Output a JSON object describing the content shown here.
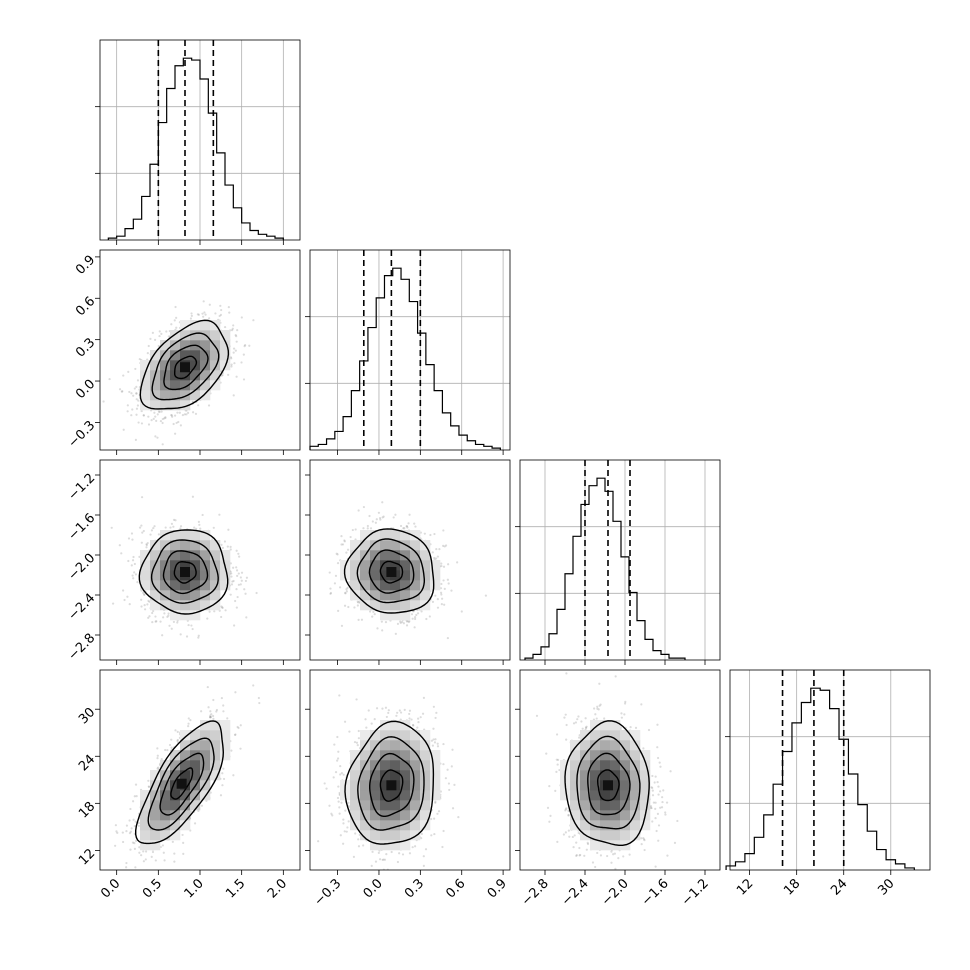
{
  "chart_data": {
    "type": "corner",
    "grid": true,
    "params": [
      {
        "range": [
          -0.2,
          2.2
        ],
        "ticks": [
          0.0,
          0.5,
          1.0,
          1.5,
          2.0
        ],
        "tick_labels": [
          "0.0",
          "0.5",
          "1.0",
          "1.5",
          "2.0"
        ],
        "quantiles": [
          0.5,
          0.82,
          1.16
        ],
        "hist_bins": [
          -0.1,
          0.0,
          0.1,
          0.2,
          0.3,
          0.4,
          0.5,
          0.6,
          0.7,
          0.8,
          0.9,
          1.0,
          1.1,
          1.2,
          1.3,
          1.4,
          1.5,
          1.6,
          1.7,
          1.8,
          1.9,
          2.0,
          2.1
        ],
        "hist_counts": [
          1,
          2,
          6,
          11,
          23,
          40,
          62,
          80,
          92,
          96,
          95,
          85,
          67,
          46,
          29,
          17,
          9,
          5,
          3,
          2,
          1
        ]
      },
      {
        "range": [
          -0.5,
          0.95
        ],
        "ticks": [
          -0.3,
          0.0,
          0.3,
          0.6,
          0.9
        ],
        "tick_labels": [
          "−0.3",
          "0.0",
          "0.3",
          "0.6",
          "0.9"
        ],
        "quantiles": [
          -0.11,
          0.09,
          0.3
        ],
        "hist_bins": [
          -0.5,
          -0.44,
          -0.38,
          -0.32,
          -0.26,
          -0.2,
          -0.14,
          -0.08,
          -0.02,
          0.04,
          0.1,
          0.16,
          0.22,
          0.28,
          0.34,
          0.4,
          0.46,
          0.52,
          0.58,
          0.64,
          0.7,
          0.76,
          0.82,
          0.88
        ],
        "hist_counts": [
          2,
          3,
          6,
          10,
          18,
          32,
          48,
          66,
          82,
          94,
          98,
          92,
          80,
          63,
          46,
          32,
          20,
          13,
          8,
          5,
          3,
          2,
          1
        ]
      },
      {
        "range": [
          -3.05,
          -1.05
        ],
        "ticks": [
          -2.8,
          -2.4,
          -2.0,
          -1.6,
          -1.2
        ],
        "tick_labels": [
          "−2.8",
          "−2.4",
          "−2.0",
          "−1.6",
          "−1.2"
        ],
        "quantiles": [
          -2.4,
          -2.17,
          -1.95
        ],
        "hist_bins": [
          -3.0,
          -2.92,
          -2.84,
          -2.76,
          -2.68,
          -2.6,
          -2.52,
          -2.44,
          -2.36,
          -2.28,
          -2.2,
          -2.12,
          -2.04,
          -1.96,
          -1.88,
          -1.8,
          -1.72,
          -1.64,
          -1.56,
          -1.48,
          -1.4
        ],
        "hist_counts": [
          1,
          3,
          7,
          14,
          27,
          46,
          66,
          83,
          93,
          97,
          90,
          74,
          55,
          36,
          21,
          11,
          5,
          3,
          1,
          1
        ]
      },
      {
        "range": [
          9.5,
          35.0
        ],
        "ticks": [
          12,
          18,
          24,
          30
        ],
        "tick_labels": [
          "12",
          "18",
          "24",
          "30"
        ],
        "quantiles": [
          16.2,
          20.2,
          24.0
        ],
        "hist_bins": [
          9.0,
          10.2,
          11.4,
          12.6,
          13.8,
          15.0,
          16.2,
          17.4,
          18.6,
          19.8,
          21.0,
          22.2,
          23.4,
          24.6,
          25.8,
          27.0,
          28.2,
          29.4,
          30.6,
          31.8,
          33.0
        ],
        "hist_counts": [
          2,
          4,
          8,
          16,
          27,
          42,
          58,
          72,
          82,
          89,
          88,
          79,
          64,
          47,
          32,
          19,
          10,
          5,
          3,
          1
        ]
      }
    ],
    "pairs": [
      {
        "row": 1,
        "col": 0,
        "mean": [
          0.82,
          0.1
        ],
        "sd": [
          0.26,
          0.16
        ],
        "rho": 0.45
      },
      {
        "row": 2,
        "col": 0,
        "mean": [
          0.82,
          -2.17
        ],
        "sd": [
          0.26,
          0.21
        ],
        "rho": 0.0
      },
      {
        "row": 2,
        "col": 1,
        "mean": [
          0.09,
          -2.17
        ],
        "sd": [
          0.16,
          0.21
        ],
        "rho": -0.05
      },
      {
        "row": 3,
        "col": 0,
        "mean": [
          0.78,
          20.5
        ],
        "sd": [
          0.26,
          3.9
        ],
        "rho": 0.72
      },
      {
        "row": 3,
        "col": 1,
        "mean": [
          0.09,
          20.3
        ],
        "sd": [
          0.16,
          3.9
        ],
        "rho": 0.1
      },
      {
        "row": 3,
        "col": 2,
        "mean": [
          -2.17,
          20.3
        ],
        "sd": [
          0.21,
          3.9
        ],
        "rho": -0.05
      }
    ]
  }
}
